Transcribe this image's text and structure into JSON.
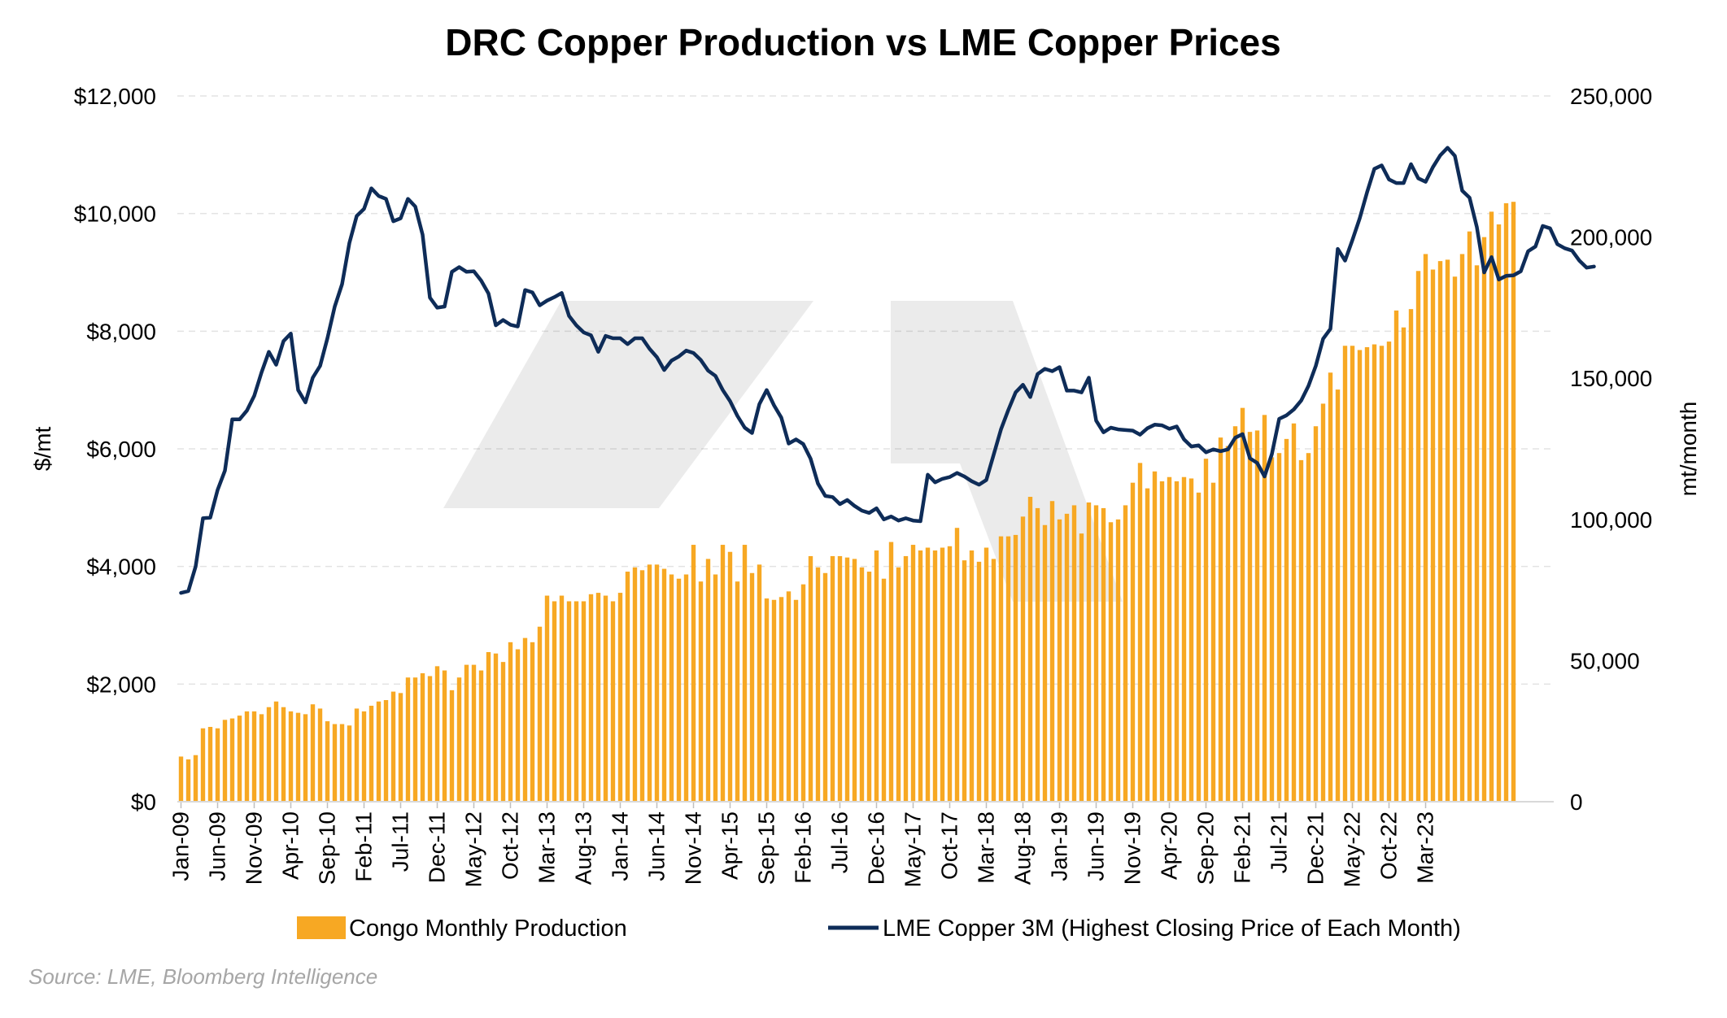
{
  "chart_data": {
    "type": "bar",
    "title": "DRC Copper Production vs LME Copper Prices",
    "ylabel_left": "$/mt",
    "ylabel_right": "mt/month",
    "ylim_left": [
      0,
      12000
    ],
    "ylim_right": [
      0,
      250000
    ],
    "y_ticks_left": [
      "$0",
      "$2,000",
      "$4,000",
      "$6,000",
      "$8,000",
      "$10,000",
      "$12,000"
    ],
    "y_ticks_right": [
      "0",
      "50,000",
      "100,000",
      "150,000",
      "200,000",
      "250,000"
    ],
    "grid": true,
    "legend_position": "bottom",
    "source": "Source: LME, Bloomberg Intelligence",
    "x_tick_labels": [
      "Jan-09",
      "Jun-09",
      "Nov-09",
      "Apr-10",
      "Sep-10",
      "Feb-11",
      "Jul-11",
      "Dec-11",
      "May-12",
      "Oct-12",
      "Mar-13",
      "Aug-13",
      "Jan-14",
      "Jun-14",
      "Nov-14",
      "Apr-15",
      "Sep-15",
      "Feb-16",
      "Jul-16",
      "Dec-16",
      "May-17",
      "Oct-17",
      "Mar-18",
      "Aug-18",
      "Jan-19",
      "Jun-19",
      "Nov-19",
      "Apr-20",
      "Sep-20",
      "Feb-21",
      "Jul-21",
      "Dec-21",
      "May-22",
      "Oct-22",
      "Mar-23"
    ],
    "x_start": "Jan-09",
    "series": [
      {
        "name": "Congo Monthly Production",
        "type": "bar",
        "axis": "right",
        "color": "#f7a823",
        "values": [
          16000,
          15000,
          16500,
          26000,
          26500,
          26000,
          29000,
          29500,
          30500,
          32000,
          32000,
          31000,
          33500,
          35500,
          33500,
          32000,
          31500,
          31000,
          34500,
          33000,
          28500,
          27500,
          27500,
          27000,
          33000,
          32000,
          34000,
          35500,
          36000,
          39000,
          38500,
          44000,
          44000,
          45500,
          44500,
          48000,
          46500,
          39500,
          44000,
          48500,
          48500,
          46500,
          53000,
          52500,
          49500,
          56500,
          54000,
          58000,
          56500,
          62000,
          73000,
          71000,
          73000,
          71000,
          71000,
          71000,
          73500,
          74000,
          73000,
          71000,
          74000,
          81500,
          83000,
          82000,
          84000,
          84000,
          82500,
          80500,
          79000,
          80500,
          91000,
          78000,
          86000,
          80500,
          91000,
          88500,
          78000,
          91000,
          81000,
          84000,
          72000,
          71500,
          72500,
          74500,
          71500,
          77000,
          87000,
          83000,
          81000,
          87000,
          87000,
          86500,
          86000,
          83000,
          81500,
          89000,
          79000,
          92000,
          83000,
          87000,
          91000,
          89000,
          90000,
          89000,
          90000,
          90500,
          97000,
          85500,
          89000,
          85000,
          90000,
          86000,
          94000,
          94000,
          94500,
          101000,
          108000,
          104000,
          98000,
          106500,
          100000,
          102000,
          105000,
          95000,
          106000,
          105000,
          104000,
          99000,
          100000,
          105000,
          113000,
          120000,
          111000,
          117000,
          113500,
          115000,
          113500,
          115000,
          114500,
          109500,
          121500,
          113000,
          129000,
          126000,
          133000,
          139500,
          131000,
          131500,
          137000,
          122000,
          123500,
          128500,
          134000,
          121000,
          123500,
          133000,
          141000,
          152000,
          146000,
          161500,
          161500,
          160000,
          161000,
          162000,
          161500,
          163000,
          174000,
          168000,
          174500,
          188000,
          194000,
          188500,
          191500,
          192000,
          186000,
          194000,
          202000,
          190000,
          200000,
          209000,
          204500,
          212000,
          212500
        ]
      },
      {
        "name": "LME Copper 3M (Highest Closing Price of Each Month)",
        "type": "line",
        "axis": "left",
        "color": "#0e2c58",
        "values": [
          3550,
          3580,
          4000,
          4820,
          4830,
          5300,
          5630,
          6500,
          6500,
          6650,
          6900,
          7300,
          7650,
          7430,
          7830,
          7960,
          7000,
          6790,
          7210,
          7410,
          7880,
          8420,
          8800,
          9500,
          9960,
          10080,
          10430,
          10300,
          10250,
          9870,
          9920,
          10250,
          10120,
          9640,
          8570,
          8400,
          8420,
          9010,
          9090,
          9010,
          9020,
          8860,
          8640,
          8100,
          8190,
          8110,
          8080,
          8700,
          8660,
          8440,
          8520,
          8580,
          8650,
          8260,
          8100,
          7980,
          7930,
          7650,
          7920,
          7880,
          7880,
          7780,
          7880,
          7880,
          7700,
          7560,
          7340,
          7500,
          7570,
          7670,
          7630,
          7510,
          7330,
          7240,
          7000,
          6810,
          6560,
          6360,
          6270,
          6760,
          7000,
          6740,
          6530,
          6090,
          6160,
          6080,
          5830,
          5410,
          5200,
          5180,
          5060,
          5130,
          5030,
          4950,
          4910,
          4990,
          4800,
          4850,
          4780,
          4820,
          4780,
          4770,
          5560,
          5430,
          5490,
          5520,
          5590,
          5530,
          5450,
          5390,
          5470,
          5900,
          6330,
          6660,
          6960,
          7090,
          6880,
          7270,
          7360,
          7320,
          7390,
          6990,
          6990,
          6960,
          7210,
          6480,
          6280,
          6360,
          6330,
          6320,
          6310,
          6240,
          6350,
          6410,
          6400,
          6340,
          6380,
          6160,
          6040,
          6060,
          5940,
          5990,
          5960,
          5990,
          6190,
          6250,
          5840,
          5760,
          5530,
          5910,
          6510,
          6570,
          6670,
          6820,
          7070,
          7410,
          7870,
          8040,
          9400,
          9200,
          9550,
          9920,
          10360,
          10760,
          10820,
          10580,
          10520,
          10520,
          10840,
          10600,
          10540,
          10790,
          10990,
          11120,
          10980,
          10390,
          10270,
          9770,
          9000,
          9260,
          8880,
          8940,
          8950,
          9020,
          9360,
          9440,
          9790,
          9750,
          9480,
          9410,
          9370,
          9200,
          9080,
          9100
        ]
      }
    ]
  }
}
